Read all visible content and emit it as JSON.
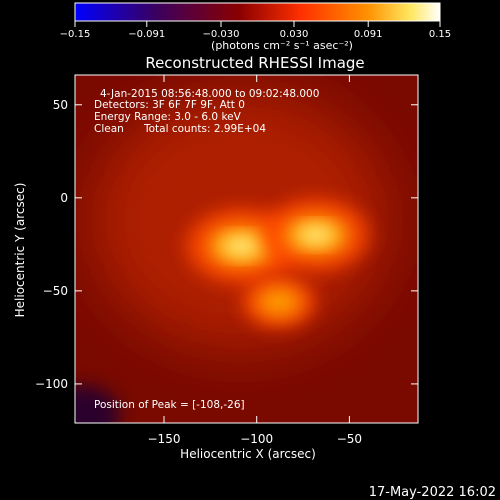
{
  "chart_data": {
    "type": "heatmap",
    "title": "Reconstructed RHESSI Image",
    "xlabel": "Heliocentric X (arcsec)",
    "ylabel": "Heliocentric Y (arcsec)",
    "xlim": [
      -198,
      -13
    ],
    "ylim": [
      -121,
      66
    ],
    "x_ticks": [
      -150,
      -100,
      -50
    ],
    "y_ticks": [
      50,
      0,
      -50,
      -100
    ],
    "x_tick_labels": [
      "−150",
      "−100",
      "−50"
    ],
    "y_tick_labels": [
      "50",
      "0",
      "−50",
      "−100"
    ],
    "colorbar": {
      "range": [
        -0.15,
        0.15
      ],
      "ticks": [
        -0.15,
        -0.091,
        -0.03,
        0.03,
        0.091,
        0.15
      ],
      "tick_labels": [
        "−0.15",
        "−0.091",
        "−0.030",
        "0.030",
        "0.091",
        "0.15"
      ],
      "units_label": "(photons cm⁻² s⁻¹ asec⁻²)",
      "colors": [
        "#0000ff",
        "#3a0060",
        "#8a0000",
        "#ff3000",
        "#ff9000",
        "#ffe860",
        "#ffffff"
      ]
    },
    "sources": [
      {
        "x": -108,
        "y": -26,
        "relative_peak": 1.0
      },
      {
        "x": -68,
        "y": -20,
        "relative_peak": 0.95
      },
      {
        "x": -88,
        "y": -56,
        "relative_peak": 0.6
      }
    ],
    "annotations": {
      "time_range": "4-Jan-2015 08:56:48.000 to 09:02:48.000",
      "detectors": "Detectors: 3F 6F 7F 9F, Att 0",
      "energy_range": "Energy Range: 3.0 - 6.0 keV",
      "method": "Clean",
      "total_counts": "Total counts: 2.99E+04",
      "peak_position": "Position of Peak = [-108,-26]"
    },
    "grid": false
  },
  "footer": {
    "timestamp": "17-May-2022 16:02"
  }
}
